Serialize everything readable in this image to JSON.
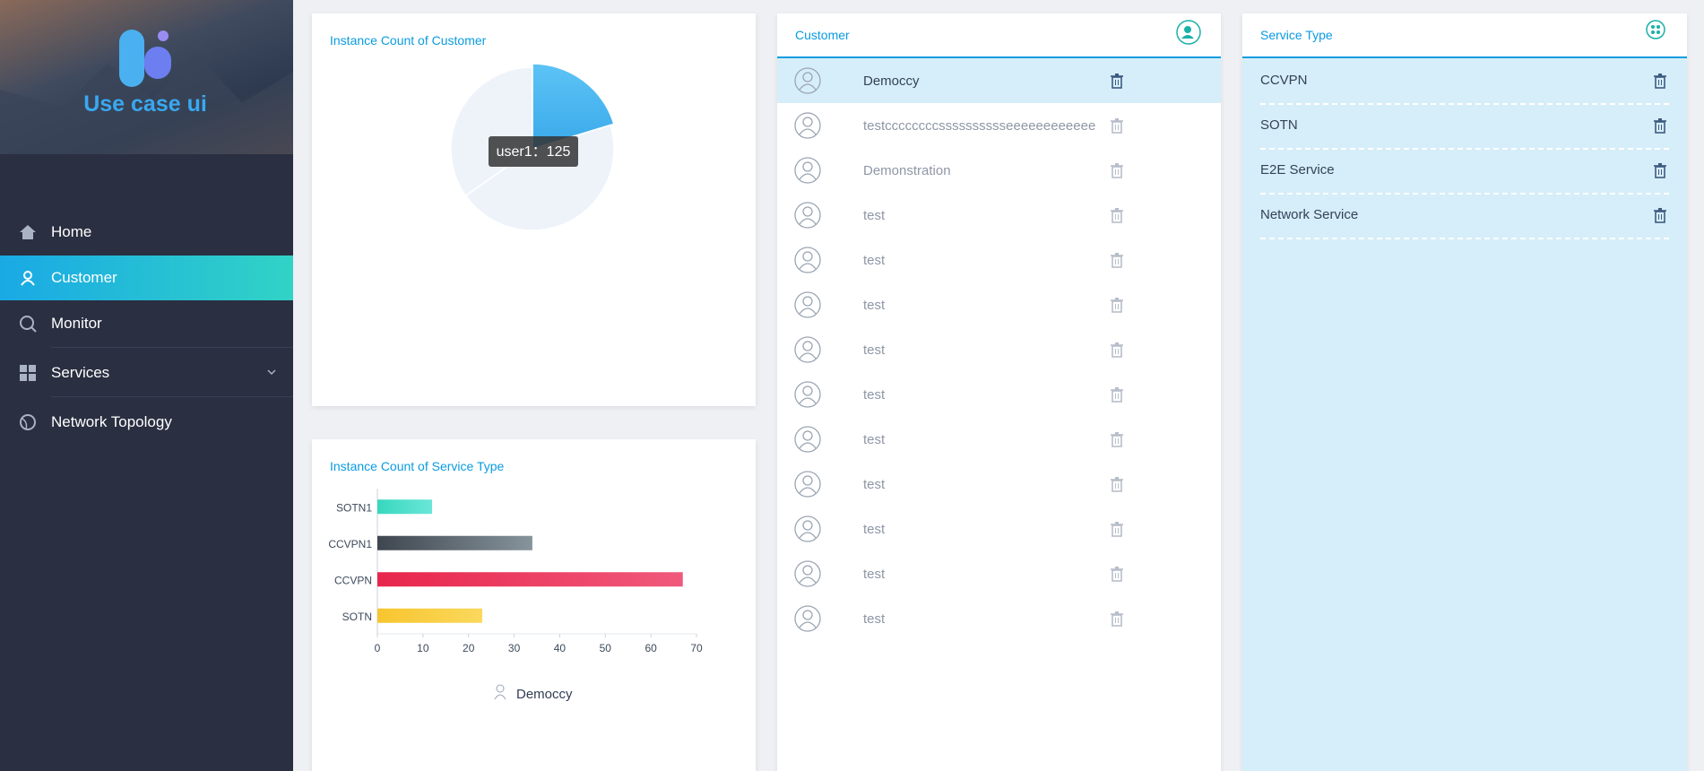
{
  "sidebar": {
    "logo_text": "Use case ui",
    "nav": [
      "Home",
      "Customer",
      "Monitor",
      "Services",
      "Network Topology"
    ],
    "active": 1
  },
  "chart_data": [
    {
      "type": "pie",
      "title": "Instance Count of Customer",
      "categories": [
        "user1",
        null,
        null
      ],
      "values": [
        125,
        277,
        214
      ],
      "colors": [
        "#3aa9ea",
        "#eef3fa",
        "#eef3fa"
      ],
      "tooltip_separator": "："
    },
    {
      "type": "hbar",
      "title": "Instance Count of Service Type",
      "categories": [
        "SOTN",
        "CCVPN",
        "CCVPN1",
        "SOTN1"
      ],
      "series": [
        {
          "name": "Democcy",
          "values": [
            23,
            67,
            34,
            12
          ]
        }
      ],
      "colors": [
        [
          "#f7c52f",
          "#fbd85c"
        ],
        [
          "#e8264c",
          "#f0597c"
        ],
        [
          "#3f4650",
          "#86949c"
        ],
        [
          "#37d8bd",
          "#6ae6d8"
        ]
      ],
      "xlim": [
        0,
        70
      ],
      "xticks": [
        0,
        10,
        20,
        30,
        40,
        50,
        60,
        70
      ]
    }
  ],
  "customer_panel": {
    "title": "Customer",
    "customers": [
      "Democcy",
      "testccccccccsssssssssseeeeeeeeeeee",
      "Demonstration",
      "test",
      "test",
      "test",
      "test",
      "test",
      "test",
      "test",
      "test",
      "test",
      "test"
    ],
    "selected": 0
  },
  "service_panel": {
    "title": "Service Type",
    "types": [
      "CCVPN",
      "SOTN",
      "E2E Service",
      "Network Service"
    ]
  }
}
